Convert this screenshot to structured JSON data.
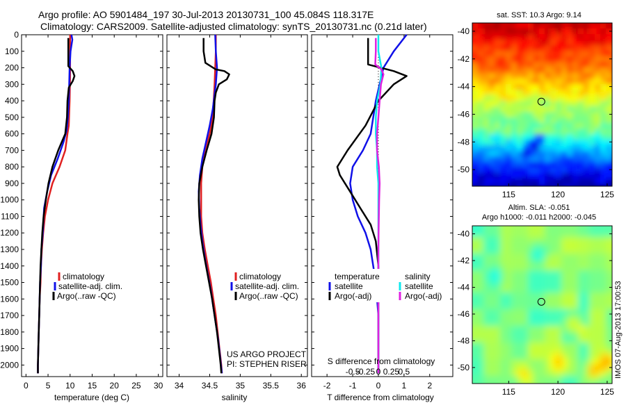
{
  "title": {
    "line1": "Argo profile: AO 5901484_197 30-Jul-2013 20130731_100 45.084S 118.317E",
    "line2": "Climatology: CARS2009. Satellite-adjusted climatology: synTS_20130731.nc (0.21d later)"
  },
  "credit": "IMOS 07-Aug-2013 17:00:53",
  "project": {
    "line1": "US ARGO PROJECT",
    "line2": "PI: STEPHEN RISER"
  },
  "colors": {
    "climatology": "#e02020",
    "satellite": "#1010e8",
    "argo": "#000000",
    "sal_satellite": "#10e8ee",
    "sal_argo": "#e020e0"
  },
  "chart_data": [
    {
      "type": "line",
      "id": "temperature",
      "xlabel": "temperature (deg C)",
      "ylabel": "",
      "xlim": [
        -1,
        31
      ],
      "ylim": [
        2070,
        0
      ],
      "xticks": [
        0,
        5,
        10,
        15,
        20,
        25,
        30
      ],
      "yticks": [
        0,
        100,
        200,
        300,
        400,
        500,
        600,
        700,
        800,
        900,
        1000,
        1100,
        1200,
        1300,
        1400,
        1500,
        1600,
        1700,
        1800,
        1900,
        2000
      ],
      "legend": [
        "climatology",
        "satellite-adj. clim.",
        "Argo(..raw -QC)"
      ],
      "legend_position": "lower-center",
      "series": [
        {
          "name": "climatology",
          "color": "#e02020",
          "points": [
            [
              10.0,
              0
            ],
            [
              10.0,
              100
            ],
            [
              10.0,
              250
            ],
            [
              9.9,
              400
            ],
            [
              9.7,
              550
            ],
            [
              9.4,
              600
            ],
            [
              8.9,
              700
            ],
            [
              7.6,
              800
            ],
            [
              6.0,
              900
            ],
            [
              5.0,
              1000
            ],
            [
              4.3,
              1100
            ],
            [
              3.9,
              1200
            ],
            [
              3.6,
              1300
            ],
            [
              3.4,
              1400
            ],
            [
              3.3,
              1500
            ],
            [
              3.1,
              1600
            ],
            [
              3.0,
              1700
            ],
            [
              2.9,
              1800
            ],
            [
              2.8,
              1900
            ],
            [
              2.7,
              2000
            ],
            [
              2.7,
              2050
            ]
          ]
        },
        {
          "name": "satellite-adj. clim.",
          "color": "#1010e8",
          "points": [
            [
              10.3,
              0
            ],
            [
              10.5,
              30
            ],
            [
              10.1,
              100
            ],
            [
              9.9,
              200
            ],
            [
              9.8,
              300
            ],
            [
              9.7,
              400
            ],
            [
              9.5,
              500
            ],
            [
              9.2,
              580
            ],
            [
              8.5,
              650
            ],
            [
              7.2,
              750
            ],
            [
              5.7,
              850
            ],
            [
              4.8,
              950
            ],
            [
              4.1,
              1050
            ],
            [
              3.8,
              1200
            ],
            [
              3.5,
              1300
            ],
            [
              3.4,
              1400
            ],
            [
              3.2,
              1500
            ],
            [
              3.1,
              1600
            ],
            [
              3.0,
              1700
            ],
            [
              2.9,
              1800
            ],
            [
              2.8,
              1900
            ],
            [
              2.7,
              2000
            ],
            [
              2.7,
              2050
            ]
          ]
        },
        {
          "name": "Argo(..raw -QC)",
          "color": "#000000",
          "points": [
            [
              9.6,
              20
            ],
            [
              9.6,
              100
            ],
            [
              9.6,
              190
            ],
            [
              10.6,
              220
            ],
            [
              11.0,
              250
            ],
            [
              10.6,
              280
            ],
            [
              9.7,
              320
            ],
            [
              9.4,
              400
            ],
            [
              9.3,
              500
            ],
            [
              8.9,
              600
            ],
            [
              7.3,
              700
            ],
            [
              6.0,
              800
            ],
            [
              5.1,
              900
            ],
            [
              4.5,
              1000
            ],
            [
              4.0,
              1100
            ],
            [
              3.7,
              1200
            ],
            [
              3.5,
              1300
            ],
            [
              3.3,
              1400
            ],
            [
              3.2,
              1500
            ],
            [
              3.1,
              1600
            ],
            [
              3.0,
              1700
            ],
            [
              2.9,
              1800
            ],
            [
              2.8,
              1900
            ],
            [
              2.7,
              2000
            ],
            [
              2.7,
              2050
            ]
          ]
        }
      ]
    },
    {
      "type": "line",
      "id": "salinity",
      "xlabel": "salinity",
      "ylabel": "",
      "xlim": [
        33.8,
        36.1
      ],
      "ylim": [
        2070,
        0
      ],
      "xticks": [
        34,
        34.5,
        35,
        35.5,
        36
      ],
      "legend": [
        "climatology",
        "satellite-adj. clim.",
        "Argo(..raw -QC)"
      ],
      "legend_position": "lower-center",
      "series": [
        {
          "name": "climatology",
          "color": "#e02020",
          "points": [
            [
              34.6,
              0
            ],
            [
              34.6,
              100
            ],
            [
              34.58,
              300
            ],
            [
              34.55,
              500
            ],
            [
              34.5,
              600
            ],
            [
              34.42,
              700
            ],
            [
              34.38,
              800
            ],
            [
              34.36,
              900
            ],
            [
              34.36,
              1000
            ],
            [
              34.36,
              1100
            ],
            [
              34.38,
              1200
            ],
            [
              34.42,
              1300
            ],
            [
              34.47,
              1400
            ],
            [
              34.52,
              1500
            ],
            [
              34.56,
              1600
            ],
            [
              34.6,
              1700
            ],
            [
              34.63,
              1800
            ],
            [
              34.66,
              1900
            ],
            [
              34.69,
              2000
            ],
            [
              34.7,
              2050
            ]
          ]
        },
        {
          "name": "satellite-adj. clim.",
          "color": "#1010e8",
          "points": [
            [
              34.59,
              0
            ],
            [
              34.6,
              100
            ],
            [
              34.62,
              200
            ],
            [
              34.6,
              300
            ],
            [
              34.55,
              450
            ],
            [
              34.5,
              550
            ],
            [
              34.44,
              650
            ],
            [
              34.38,
              750
            ],
            [
              34.34,
              850
            ],
            [
              34.32,
              950
            ],
            [
              34.33,
              1050
            ],
            [
              34.35,
              1150
            ],
            [
              34.38,
              1250
            ],
            [
              34.42,
              1350
            ],
            [
              34.47,
              1450
            ],
            [
              34.52,
              1550
            ],
            [
              34.56,
              1650
            ],
            [
              34.6,
              1750
            ],
            [
              34.64,
              1850
            ],
            [
              34.67,
              1950
            ],
            [
              34.7,
              2050
            ]
          ]
        },
        {
          "name": "Argo(..raw -QC)",
          "color": "#000000",
          "points": [
            [
              34.4,
              20
            ],
            [
              34.4,
              100
            ],
            [
              34.43,
              170
            ],
            [
              34.6,
              210
            ],
            [
              34.74,
              220
            ],
            [
              34.82,
              240
            ],
            [
              34.78,
              270
            ],
            [
              34.65,
              300
            ],
            [
              34.6,
              350
            ],
            [
              34.58,
              400
            ],
            [
              34.57,
              500
            ],
            [
              34.53,
              600
            ],
            [
              34.45,
              700
            ],
            [
              34.38,
              800
            ],
            [
              34.33,
              900
            ],
            [
              34.32,
              1000
            ],
            [
              34.33,
              1100
            ],
            [
              34.35,
              1200
            ],
            [
              34.39,
              1300
            ],
            [
              34.44,
              1400
            ],
            [
              34.49,
              1500
            ],
            [
              34.54,
              1600
            ],
            [
              34.58,
              1700
            ],
            [
              34.62,
              1800
            ],
            [
              34.65,
              1900
            ],
            [
              34.68,
              2000
            ],
            [
              34.69,
              2050
            ]
          ]
        }
      ]
    },
    {
      "type": "line",
      "id": "difference",
      "xlabel": "T difference from climatology",
      "xlabel_top": "S difference from climatology",
      "ylabel": "",
      "xlim": [
        -2.6,
        2.9
      ],
      "ylim": [
        2070,
        0
      ],
      "xticks": [
        -2,
        -1,
        0,
        1,
        2
      ],
      "xticks_top": [
        "-0.5",
        "-0.25",
        "0",
        "0.25",
        "0.5"
      ],
      "legend": {
        "temperature": {
          "header": "temperature",
          "items": [
            "satellite",
            "Argo(-adj)"
          ]
        },
        "salinity": {
          "header": "salinity",
          "items": [
            "satellite",
            "Argo(-adj)"
          ]
        }
      },
      "legend_position": "lower-center",
      "series": [
        {
          "name": "satellite",
          "group": "temperature",
          "color": "#1010e8",
          "points": [
            [
              1.1,
              0
            ],
            [
              0.6,
              100
            ],
            [
              0.2,
              200
            ],
            [
              0.05,
              300
            ],
            [
              -0.1,
              400
            ],
            [
              -0.3,
              600
            ],
            [
              -0.6,
              700
            ],
            [
              -1.0,
              800
            ],
            [
              -1.1,
              900
            ],
            [
              -1.0,
              1000
            ],
            [
              -0.8,
              1100
            ],
            [
              -0.5,
              1200
            ],
            [
              -0.3,
              1300
            ],
            [
              -0.2,
              1400
            ],
            [
              -0.1,
              1500
            ],
            [
              -0.05,
              1600
            ],
            [
              0.0,
              1700
            ],
            [
              0.0,
              1800
            ],
            [
              0.0,
              1900
            ],
            [
              0.0,
              2050
            ]
          ]
        },
        {
          "name": "Argo(-adj)",
          "group": "temperature",
          "color": "#000000",
          "points": [
            [
              -0.4,
              20
            ],
            [
              -0.4,
              100
            ],
            [
              -0.4,
              180
            ],
            [
              0.6,
              220
            ],
            [
              1.1,
              250
            ],
            [
              0.6,
              300
            ],
            [
              0.0,
              400
            ],
            [
              -0.5,
              550
            ],
            [
              -1.2,
              700
            ],
            [
              -1.6,
              800
            ],
            [
              -1.5,
              850
            ],
            [
              -1.1,
              950
            ],
            [
              -0.7,
              1050
            ],
            [
              -0.3,
              1150
            ],
            [
              -0.1,
              1250
            ],
            [
              0.0,
              1400
            ],
            [
              0.0,
              1600
            ],
            [
              0.0,
              1800
            ],
            [
              0.0,
              2050
            ]
          ]
        },
        {
          "name": "satellite",
          "group": "salinity",
          "color": "#10e8ee",
          "points": [
            [
              0.0,
              0
            ],
            [
              0.0,
              100
            ],
            [
              0.12,
              200
            ],
            [
              0.08,
              300
            ],
            [
              -0.05,
              400
            ],
            [
              -0.1,
              500
            ],
            [
              -0.1,
              600
            ],
            [
              -0.05,
              700
            ],
            [
              -0.05,
              800
            ],
            [
              0.0,
              900
            ],
            [
              0.0,
              1000
            ],
            [
              0.0,
              1200
            ],
            [
              0.0,
              1400
            ],
            [
              0.0,
              1600
            ],
            [
              0.0,
              1800
            ],
            [
              0.0,
              2050
            ]
          ]
        },
        {
          "name": "Argo(-adj)",
          "group": "salinity",
          "color": "#e020e0",
          "points": [
            [
              -0.1,
              20
            ],
            [
              -0.1,
              100
            ],
            [
              -0.12,
              180
            ],
            [
              0.12,
              210
            ],
            [
              0.2,
              240
            ],
            [
              0.1,
              300
            ],
            [
              0.05,
              400
            ],
            [
              0.0,
              500
            ],
            [
              -0.05,
              600
            ],
            [
              -0.05,
              700
            ],
            [
              0.02,
              800
            ],
            [
              0.05,
              900
            ],
            [
              0.03,
              1000
            ],
            [
              0.02,
              1100
            ],
            [
              0.01,
              1200
            ],
            [
              0.0,
              1300
            ],
            [
              0.0,
              1500
            ],
            [
              0.0,
              1700
            ],
            [
              0.0,
              1900
            ],
            [
              0.0,
              2050
            ]
          ]
        }
      ]
    },
    {
      "type": "heatmap",
      "id": "sst_map",
      "title": "sat. SST: 10.3 Argo: 9.14",
      "xlim": [
        111.3,
        125.5
      ],
      "ylim": [
        -51.2,
        -39.4
      ],
      "xticks": [
        115,
        120,
        125
      ],
      "yticks": [
        -40,
        -42,
        -44,
        -46,
        -48,
        -50
      ],
      "marker": {
        "lon": 118.317,
        "lat": -45.084
      }
    },
    {
      "type": "heatmap",
      "id": "sla_map",
      "title": "Altim. SLA: -0.051",
      "subtitle": "Argo h1000: -0.011 h2000: -0.045",
      "xlim": [
        111.3,
        125.5
      ],
      "ylim": [
        -51.2,
        -39.4
      ],
      "xticks": [
        115,
        120,
        125
      ],
      "yticks": [
        -40,
        -42,
        -44,
        -46,
        -48,
        -50
      ],
      "marker": {
        "lon": 118.317,
        "lat": -45.084
      }
    }
  ]
}
